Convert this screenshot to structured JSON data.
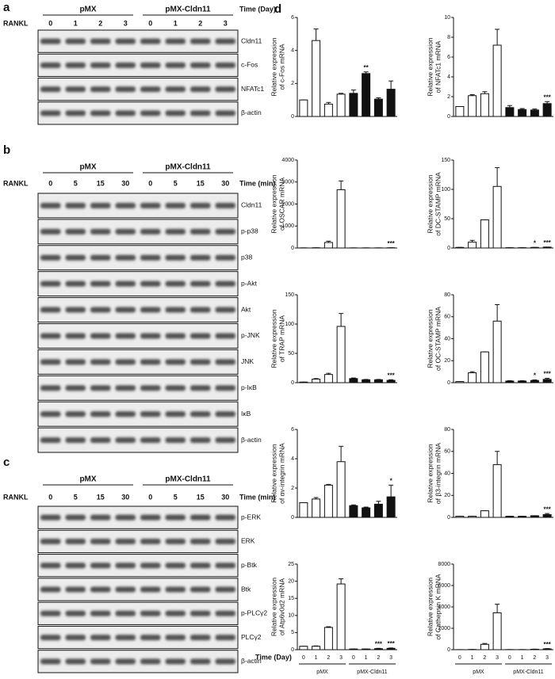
{
  "blots": [
    {
      "label": "a",
      "stimulus": "RANKL",
      "groups": [
        "pMX",
        "pMX-Cldn11"
      ],
      "time_label": "Time (Day)",
      "lanes": [
        "0",
        "1",
        "2",
        "3",
        "0",
        "1",
        "2",
        "3"
      ],
      "rows": [
        "Cldn11",
        "c-Fos",
        "NFATc1",
        "β-actin"
      ]
    },
    {
      "label": "b",
      "stimulus": "RANKL",
      "groups": [
        "pMX",
        "pMX-Cldn11"
      ],
      "time_label": "Time (min)",
      "lanes": [
        "0",
        "5",
        "15",
        "30",
        "0",
        "5",
        "15",
        "30"
      ],
      "rows": [
        "Cldn11",
        "p-p38",
        "p38",
        "p-Akt",
        "Akt",
        "p-JNK",
        "JNK",
        "p-IκB",
        "IκB",
        "β-actin"
      ]
    },
    {
      "label": "c",
      "stimulus": "RANKL",
      "groups": [
        "pMX",
        "pMX-Cldn11"
      ],
      "time_label": "Time (min)",
      "lanes": [
        "0",
        "5",
        "15",
        "30",
        "0",
        "5",
        "15",
        "30"
      ],
      "rows": [
        "p-ERK",
        "ERK",
        "p-Btk",
        "Btk",
        "p-PLCγ2",
        "PLCγ2",
        "β-actin"
      ]
    }
  ],
  "panel_d": {
    "label": "d",
    "x_label": "Time (Day)",
    "categories": [
      "0",
      "1",
      "2",
      "3",
      "0",
      "1",
      "2",
      "3"
    ],
    "groups": [
      "pMX",
      "pMX-Cldn11"
    ],
    "group_colors": [
      "#ffffff",
      "#111111"
    ]
  },
  "chart_data": [
    {
      "type": "bar",
      "ylabel": "Relative expression",
      "ylabel2": "of c-Fos mRNA",
      "ylim": [
        0,
        6
      ],
      "yticks": [
        0,
        2,
        4,
        6
      ],
      "values": [
        1,
        4.6,
        0.75,
        1.35,
        1.4,
        2.6,
        1.05,
        1.65
      ],
      "errors": [
        0,
        0.7,
        0.1,
        0.05,
        0.2,
        0.1,
        0.08,
        0.5
      ],
      "annotations": [
        null,
        null,
        null,
        null,
        null,
        "**",
        null,
        null
      ]
    },
    {
      "type": "bar",
      "ylabel": "Relative expression",
      "ylabel2": "of NFATc1 mRNA",
      "ylim": [
        0,
        10
      ],
      "yticks": [
        0,
        2,
        4,
        6,
        8,
        10
      ],
      "values": [
        1,
        2.1,
        2.3,
        7.2,
        0.9,
        0.7,
        0.65,
        1.3
      ],
      "errors": [
        0,
        0.1,
        0.2,
        1.6,
        0.2,
        0.1,
        0.1,
        0.2
      ],
      "annotations": [
        null,
        null,
        null,
        null,
        null,
        null,
        null,
        "***"
      ]
    },
    {
      "type": "bar",
      "ylabel": "Relative expression",
      "ylabel2": "of OSCAR mRNA",
      "ylim": [
        0,
        4000
      ],
      "yticks": [
        0,
        1000,
        2000,
        3000,
        4000
      ],
      "values": [
        5,
        10,
        250,
        2650,
        5,
        5,
        5,
        10
      ],
      "errors": [
        0,
        0,
        60,
        400,
        0,
        0,
        0,
        0
      ],
      "annotations": [
        null,
        null,
        null,
        null,
        null,
        null,
        null,
        "***"
      ]
    },
    {
      "type": "bar",
      "ylabel": "Relative expression",
      "ylabel2": "of DC-STAMP mRNA",
      "ylim": [
        0,
        150
      ],
      "yticks": [
        0,
        50,
        100,
        150
      ],
      "values": [
        1,
        10,
        48,
        105,
        0.5,
        0.5,
        1,
        1.5
      ],
      "errors": [
        0,
        3,
        0,
        32,
        0,
        0,
        0,
        0
      ],
      "annotations": [
        null,
        null,
        null,
        null,
        null,
        null,
        "*",
        "***"
      ]
    },
    {
      "type": "bar",
      "ylabel": "Relative expression",
      "ylabel2": "of TRAP mRNA",
      "ylim": [
        0,
        150
      ],
      "yticks": [
        0,
        50,
        100,
        150
      ],
      "values": [
        1,
        6,
        14,
        96,
        7,
        5,
        5,
        4
      ],
      "errors": [
        0,
        1,
        2,
        22,
        1,
        0.5,
        0.5,
        1
      ],
      "annotations": [
        null,
        null,
        null,
        null,
        null,
        null,
        null,
        "***"
      ]
    },
    {
      "type": "bar",
      "ylabel": "Relative expression",
      "ylabel2": "of OC-STAMP mRNA",
      "ylim": [
        0,
        80
      ],
      "yticks": [
        0,
        20,
        40,
        60,
        80
      ],
      "values": [
        1,
        9,
        28,
        56,
        1.5,
        1.5,
        2,
        3
      ],
      "errors": [
        0,
        1,
        0,
        15,
        0.3,
        0.3,
        0.5,
        1
      ],
      "annotations": [
        null,
        null,
        null,
        null,
        null,
        null,
        "*",
        "***"
      ]
    },
    {
      "type": "bar",
      "ylabel": "Relative expression",
      "ylabel2": "of αv-integrin mRNA",
      "ylim": [
        0,
        6
      ],
      "yticks": [
        0,
        2,
        4,
        6
      ],
      "values": [
        1,
        1.25,
        2.2,
        3.8,
        0.8,
        0.65,
        0.9,
        1.4
      ],
      "errors": [
        0,
        0.1,
        0.05,
        1.05,
        0.05,
        0.05,
        0.2,
        0.8
      ],
      "annotations": [
        null,
        null,
        null,
        null,
        null,
        null,
        null,
        "*"
      ]
    },
    {
      "type": "bar",
      "ylabel": "Relative expression",
      "ylabel2": "of β3-integrin mRNA",
      "ylim": [
        0,
        80
      ],
      "yticks": [
        0,
        20,
        40,
        60,
        80
      ],
      "values": [
        1,
        1,
        6,
        48,
        1,
        1,
        1.5,
        2.5
      ],
      "errors": [
        0,
        0,
        0,
        12,
        0,
        0,
        0,
        1
      ],
      "annotations": [
        null,
        null,
        null,
        null,
        null,
        null,
        null,
        "***"
      ]
    },
    {
      "type": "bar",
      "ylabel": "Relative expression",
      "ylabel2": "of Atp6v0d2 mRNA",
      "ylim": [
        0,
        25
      ],
      "yticks": [
        0,
        5,
        10,
        15,
        20,
        25
      ],
      "values": [
        1,
        1,
        6.5,
        19.2,
        0.2,
        0.2,
        0.3,
        0.4
      ],
      "errors": [
        0,
        0.1,
        0.2,
        1.5,
        0,
        0,
        0.1,
        0.1
      ],
      "annotations": [
        null,
        null,
        null,
        null,
        null,
        null,
        "***",
        "***"
      ]
    },
    {
      "type": "bar",
      "ylabel": "Relative expression",
      "ylabel2": "of Cathepsin K mRNA",
      "ylim": [
        0,
        8000
      ],
      "yticks": [
        0,
        2000,
        4000,
        6000,
        8000
      ],
      "values": [
        5,
        20,
        500,
        3450,
        10,
        10,
        40,
        80
      ],
      "errors": [
        0,
        0,
        80,
        800,
        0,
        0,
        10,
        20
      ],
      "annotations": [
        null,
        null,
        null,
        null,
        null,
        null,
        null,
        "***"
      ]
    }
  ]
}
